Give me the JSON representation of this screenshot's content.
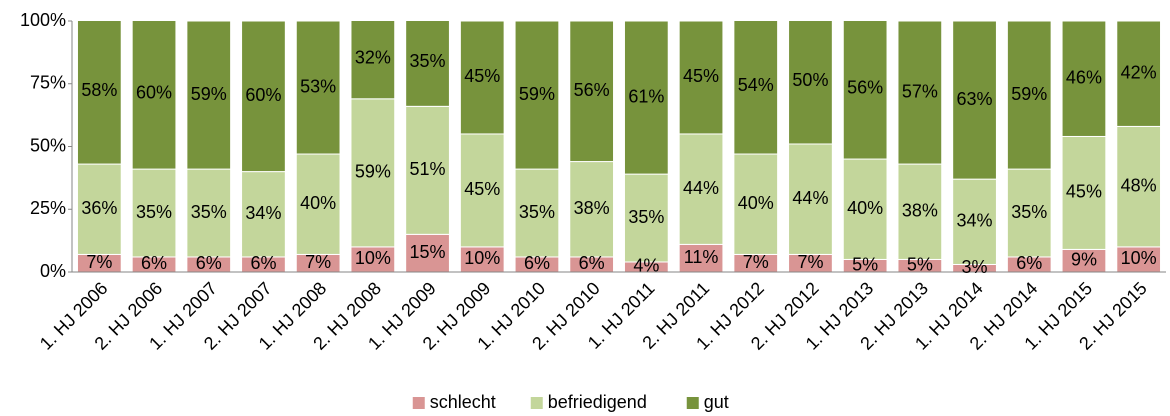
{
  "chart_data": {
    "type": "bar",
    "stacked": true,
    "categories": [
      "1. HJ 2006",
      "2. HJ 2006",
      "1. HJ 2007",
      "2. HJ 2007",
      "1. HJ 2008",
      "2. HJ 2008",
      "1. HJ 2009",
      "2. HJ 2009",
      "1. HJ 2010",
      "2. HJ 2010",
      "1. HJ 2011",
      "2. HJ 2011",
      "1. HJ 2012",
      "2. HJ 2012",
      "1. HJ 2013",
      "2. HJ 2013",
      "1. HJ 2014",
      "2. HJ 2014",
      "1. HJ 2015",
      "2. HJ 2015"
    ],
    "series": [
      {
        "name": "schlecht",
        "color": "#d99594",
        "values": [
          7,
          6,
          6,
          6,
          7,
          10,
          15,
          10,
          6,
          6,
          4,
          11,
          7,
          7,
          5,
          5,
          3,
          6,
          9,
          10
        ],
        "value_labels": [
          "7%",
          "6%",
          "6%",
          "6%",
          "7%",
          "10%",
          "15%",
          "10%",
          "6%",
          "6%",
          "4%",
          "11%",
          "7%",
          "7%",
          "5%",
          "5%",
          "3%",
          "6%",
          "9%",
          "10%"
        ]
      },
      {
        "name": "befriedigend",
        "color": "#c3d69b",
        "values": [
          36,
          35,
          35,
          34,
          40,
          59,
          51,
          45,
          35,
          38,
          35,
          44,
          40,
          44,
          40,
          38,
          34,
          35,
          45,
          48
        ],
        "value_labels": [
          "36%",
          "35%",
          "35%",
          "34%",
          "40%",
          "59%",
          "51%",
          "45%",
          "35%",
          "38%",
          "35%",
          "44%",
          "40%",
          "44%",
          "40%",
          "38%",
          "34%",
          "35%",
          "45%",
          "48%"
        ]
      },
      {
        "name": "gut",
        "color": "#77933c",
        "values": [
          58,
          60,
          59,
          60,
          53,
          32,
          35,
          45,
          59,
          56,
          61,
          45,
          54,
          50,
          56,
          57,
          63,
          59,
          46,
          42
        ],
        "value_labels": [
          "58%",
          "60%",
          "59%",
          "60%",
          "53%",
          "32%",
          "35%",
          "45%",
          "59%",
          "56%",
          "61%",
          "45%",
          "54%",
          "50%",
          "56%",
          "57%",
          "63%",
          "59%",
          "46%",
          "42%"
        ]
      }
    ],
    "ylim": [
      0,
      100
    ],
    "yticks": [
      {
        "value": 0,
        "label": "0%"
      },
      {
        "value": 25,
        "label": "25%"
      },
      {
        "value": 50,
        "label": "50%"
      },
      {
        "value": 75,
        "label": "75%"
      },
      {
        "value": 100,
        "label": "100%"
      }
    ],
    "legend": "bottom"
  }
}
